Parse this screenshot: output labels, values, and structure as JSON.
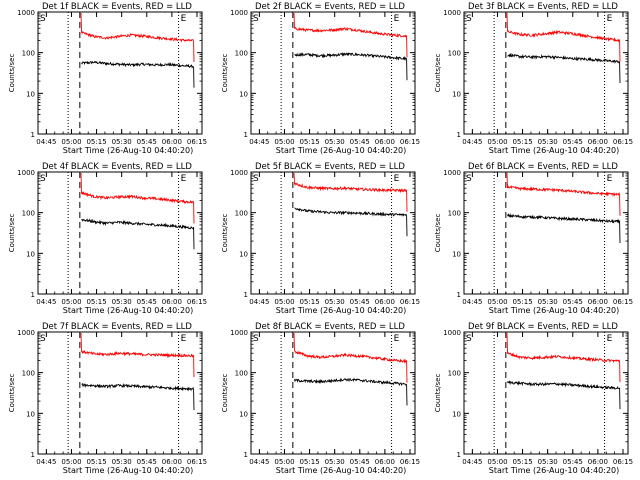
{
  "x_tick_labels": [
    "04:45",
    "05:00",
    "05:15",
    "05:30",
    "05:45",
    "06:00",
    "06:15"
  ],
  "x_ticks_minutes_after_0440": [
    5,
    20,
    35,
    50,
    65,
    80,
    95
  ],
  "x_range_minutes_after_0440": [
    0,
    98
  ],
  "y_tick_labels": [
    "1",
    "10",
    "100",
    "1000"
  ],
  "y_range_log": [
    1,
    1000
  ],
  "xlabel": "Start Time (26-Aug-10 04:40:20)",
  "ylabel": "Counts/sec",
  "colors": {
    "events": "#000000",
    "lld": "#ff0000"
  },
  "chart_data": [
    {
      "type": "line",
      "title": "Det 1f BLACK = Events, RED = LLD",
      "marker_S": "S",
      "marker_E": "E",
      "vlines": {
        "dotted": [
          18,
          84
        ],
        "dashed": [
          25
        ]
      },
      "series": [
        {
          "name": "Events",
          "values": [
            55,
            58,
            54,
            52,
            50,
            52,
            50,
            51,
            48,
            46
          ]
        },
        {
          "name": "LLD",
          "values": [
            310,
            250,
            230,
            250,
            270,
            255,
            235,
            220,
            205,
            195
          ]
        }
      ]
    },
    {
      "type": "line",
      "title": "Det 2f BLACK = Events, RED = LLD",
      "marker_S": "S",
      "marker_E": "E",
      "vlines": {
        "dotted": [
          18,
          84
        ],
        "dashed": [
          25
        ]
      },
      "series": [
        {
          "name": "Events",
          "values": [
            88,
            90,
            85,
            86,
            92,
            90,
            85,
            80,
            75,
            70
          ]
        },
        {
          "name": "LLD",
          "values": [
            390,
            360,
            350,
            360,
            390,
            360,
            320,
            290,
            270,
            255
          ]
        }
      ]
    },
    {
      "type": "line",
      "title": "Det 3f BLACK = Events, RED = LLD",
      "marker_S": "S",
      "marker_E": "E",
      "vlines": {
        "dotted": [
          18,
          84
        ],
        "dashed": [
          25
        ]
      },
      "series": [
        {
          "name": "Events",
          "values": [
            88,
            80,
            78,
            80,
            77,
            72,
            70,
            67,
            63,
            60
          ]
        },
        {
          "name": "LLD",
          "values": [
            330,
            280,
            270,
            290,
            320,
            300,
            270,
            240,
            215,
            200
          ]
        }
      ]
    },
    {
      "type": "line",
      "title": "Det 4f BLACK = Events, RED = LLD",
      "marker_S": "S",
      "marker_E": "E",
      "vlines": {
        "dotted": [
          18,
          84
        ],
        "dashed": [
          25
        ]
      },
      "series": [
        {
          "name": "Events",
          "values": [
            68,
            60,
            55,
            58,
            55,
            52,
            50,
            48,
            45,
            42
          ]
        },
        {
          "name": "LLD",
          "values": [
            310,
            250,
            230,
            245,
            250,
            230,
            220,
            205,
            190,
            180
          ]
        }
      ]
    },
    {
      "type": "line",
      "title": "Det 5f BLACK = Events, RED = LLD",
      "marker_S": "S",
      "marker_E": "E",
      "vlines": {
        "dotted": [
          18,
          84
        ],
        "dashed": [
          25
        ]
      },
      "series": [
        {
          "name": "Events",
          "values": [
            130,
            110,
            105,
            100,
            100,
            98,
            95,
            92,
            90,
            88
          ]
        },
        {
          "name": "LLD",
          "values": [
            520,
            420,
            400,
            390,
            400,
            380,
            370,
            360,
            355,
            350
          ]
        }
      ]
    },
    {
      "type": "line",
      "title": "Det 6f BLACK = Events, RED = LLD",
      "marker_S": "S",
      "marker_E": "E",
      "vlines": {
        "dotted": [
          18,
          84
        ],
        "dashed": [
          25
        ]
      },
      "series": [
        {
          "name": "Events",
          "values": [
            85,
            80,
            78,
            76,
            72,
            70,
            68,
            65,
            62,
            60
          ]
        },
        {
          "name": "LLD",
          "values": [
            430,
            390,
            380,
            370,
            360,
            340,
            320,
            300,
            290,
            280
          ]
        }
      ]
    },
    {
      "type": "line",
      "title": "Det 7f BLACK = Events, RED = LLD",
      "marker_S": "S",
      "marker_E": "E",
      "vlines": {
        "dotted": [
          18,
          84
        ],
        "dashed": [
          25
        ]
      },
      "series": [
        {
          "name": "Events",
          "values": [
            50,
            48,
            46,
            48,
            47,
            45,
            44,
            42,
            41,
            40
          ]
        },
        {
          "name": "LLD",
          "values": [
            330,
            290,
            280,
            300,
            290,
            280,
            275,
            270,
            265,
            260
          ]
        }
      ]
    },
    {
      "type": "line",
      "title": "Det 8f BLACK = Events, RED = LLD",
      "marker_S": "S",
      "marker_E": "E",
      "vlines": {
        "dotted": [
          18,
          84
        ],
        "dashed": [
          25
        ]
      },
      "series": [
        {
          "name": "Events",
          "values": [
            65,
            62,
            60,
            63,
            68,
            66,
            62,
            58,
            55,
            52
          ]
        },
        {
          "name": "LLD",
          "values": [
            330,
            260,
            240,
            250,
            270,
            260,
            240,
            220,
            200,
            190
          ]
        }
      ]
    },
    {
      "type": "line",
      "title": "Det 9f BLACK = Events, RED = LLD",
      "marker_S": "S",
      "marker_E": "E",
      "vlines": {
        "dotted": [
          18,
          84
        ],
        "dashed": [
          25
        ]
      },
      "series": [
        {
          "name": "Events",
          "values": [
            58,
            55,
            52,
            52,
            53,
            50,
            48,
            45,
            43,
            42
          ]
        },
        {
          "name": "LLD",
          "values": [
            300,
            240,
            230,
            240,
            250,
            235,
            220,
            210,
            200,
            195
          ]
        }
      ]
    }
  ]
}
